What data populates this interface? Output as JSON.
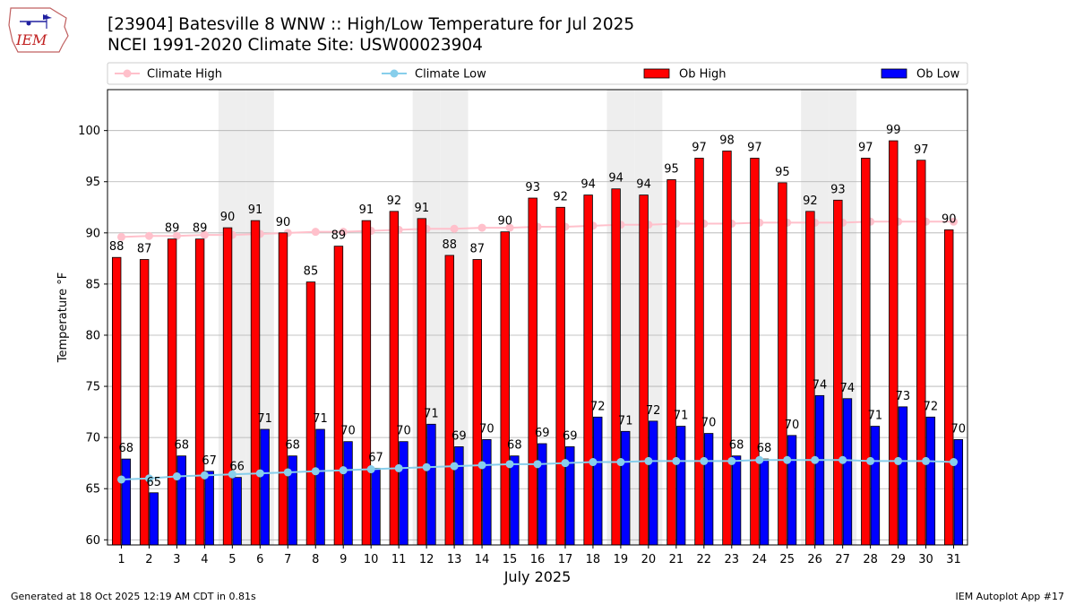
{
  "title_line1": "[23904] Batesville 8 WNW :: High/Low Temperature for Jul 2025",
  "title_line2": "NCEI 1991-2020 Climate Site: USW00023904",
  "logo_text": "IEM",
  "footer_left": "Generated at 18 Oct 2025 12:19 AM CDT in 0.81s",
  "footer_right": "IEM Autoplot App #17",
  "colors": {
    "ob_high": "#ff0000",
    "ob_low": "#0000ff",
    "climate_high": "#ffc0cb",
    "climate_low": "#87ceeb",
    "weekend_shade": "#eeeeee",
    "grid": "#b0b0b0"
  },
  "chart_data": {
    "type": "bar",
    "xlabel": "July 2025",
    "ylabel": "Temperature °F",
    "ylim": [
      59.5,
      104
    ],
    "yticks": [
      60,
      65,
      70,
      75,
      80,
      85,
      90,
      95,
      100
    ],
    "grid": "horizontal",
    "legend_position": "top",
    "categories": [
      1,
      2,
      3,
      4,
      5,
      6,
      7,
      8,
      9,
      10,
      11,
      12,
      13,
      14,
      15,
      16,
      17,
      18,
      19,
      20,
      21,
      22,
      23,
      24,
      25,
      26,
      27,
      28,
      29,
      30,
      31
    ],
    "weekend_days": [
      5,
      6,
      12,
      13,
      19,
      20,
      26,
      27
    ],
    "series": [
      {
        "name": "Ob High",
        "kind": "bar",
        "values": [
          87.6,
          87.4,
          89.4,
          89.4,
          90.5,
          91.2,
          90.0,
          85.2,
          88.7,
          91.2,
          92.1,
          91.4,
          87.8,
          87.4,
          90.1,
          93.4,
          92.5,
          93.7,
          94.3,
          93.7,
          95.2,
          97.3,
          98.0,
          97.3,
          94.9,
          92.1,
          93.2,
          97.3,
          99.0,
          97.1,
          90.3
        ],
        "labels": [
          88,
          87,
          89,
          89,
          90,
          91,
          90,
          85,
          89,
          91,
          92,
          91,
          88,
          87,
          90,
          93,
          92,
          94,
          94,
          94,
          95,
          97,
          98,
          97,
          95,
          92,
          93,
          97,
          99,
          97,
          90
        ]
      },
      {
        "name": "Ob Low",
        "kind": "bar",
        "values": [
          67.9,
          64.6,
          68.2,
          66.7,
          66.1,
          70.8,
          68.2,
          70.8,
          69.6,
          67.0,
          69.6,
          71.3,
          69.1,
          69.8,
          68.2,
          69.4,
          69.1,
          72.0,
          70.6,
          71.6,
          71.1,
          70.4,
          68.2,
          67.9,
          70.2,
          74.1,
          73.8,
          71.1,
          73.0,
          72.0,
          69.8
        ],
        "labels": [
          68,
          65,
          68,
          67,
          66,
          71,
          68,
          71,
          70,
          67,
          70,
          71,
          69,
          70,
          68,
          69,
          69,
          72,
          71,
          72,
          71,
          70,
          68,
          68,
          70,
          74,
          74,
          71,
          73,
          72,
          70
        ]
      },
      {
        "name": "Climate High",
        "kind": "line",
        "values": [
          89.6,
          89.7,
          89.7,
          89.8,
          89.8,
          89.9,
          90.0,
          90.1,
          90.1,
          90.2,
          90.3,
          90.4,
          90.4,
          90.5,
          90.5,
          90.6,
          90.6,
          90.7,
          90.8,
          90.8,
          90.9,
          90.9,
          90.9,
          91.0,
          91.0,
          91.0,
          91.0,
          91.1,
          91.1,
          91.1,
          91.1
        ]
      },
      {
        "name": "Climate Low",
        "kind": "line",
        "values": [
          65.9,
          66.0,
          66.2,
          66.3,
          66.4,
          66.5,
          66.6,
          66.7,
          66.8,
          66.9,
          67.0,
          67.1,
          67.2,
          67.3,
          67.4,
          67.4,
          67.5,
          67.6,
          67.6,
          67.7,
          67.7,
          67.7,
          67.7,
          67.8,
          67.8,
          67.8,
          67.8,
          67.7,
          67.7,
          67.7,
          67.6
        ]
      }
    ]
  }
}
